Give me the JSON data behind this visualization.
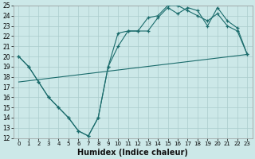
{
  "xlabel": "Humidex (Indice chaleur)",
  "bg_color": "#cce8e8",
  "grid_color": "#aacccc",
  "line_color": "#1a6b6b",
  "xlim": [
    -0.5,
    23.5
  ],
  "ylim": [
    12,
    25
  ],
  "xticks": [
    0,
    1,
    2,
    3,
    4,
    5,
    6,
    7,
    8,
    9,
    10,
    11,
    12,
    13,
    14,
    15,
    16,
    17,
    18,
    19,
    20,
    21,
    22,
    23
  ],
  "yticks": [
    12,
    13,
    14,
    15,
    16,
    17,
    18,
    19,
    20,
    21,
    22,
    23,
    24,
    25
  ],
  "series1": {
    "x": [
      0,
      1,
      2,
      3,
      4,
      5,
      6,
      7,
      8,
      9,
      10,
      11,
      12,
      13,
      14,
      15,
      16,
      17,
      18,
      19,
      20,
      21,
      22,
      23
    ],
    "y": [
      20.0,
      19.0,
      17.5,
      16.0,
      15.0,
      14.0,
      12.7,
      12.2,
      14.0,
      19.0,
      21.0,
      22.5,
      22.5,
      23.8,
      24.0,
      25.0,
      25.0,
      24.5,
      24.0,
      23.5,
      24.2,
      23.0,
      22.5,
      20.2
    ]
  },
  "series2": {
    "x": [
      0,
      1,
      2,
      3,
      4,
      5,
      6,
      7,
      8,
      9,
      10,
      11,
      12,
      13,
      14,
      15,
      16,
      17,
      18,
      19,
      20,
      21,
      22,
      23
    ],
    "y": [
      20.0,
      19.0,
      17.5,
      16.0,
      15.0,
      14.0,
      12.7,
      12.2,
      14.0,
      19.0,
      22.3,
      22.5,
      22.5,
      22.5,
      23.8,
      24.8,
      24.2,
      24.8,
      24.5,
      23.0,
      24.8,
      23.5,
      22.8,
      20.2
    ]
  },
  "series3": {
    "x": [
      0,
      23
    ],
    "y": [
      17.5,
      20.2
    ]
  }
}
